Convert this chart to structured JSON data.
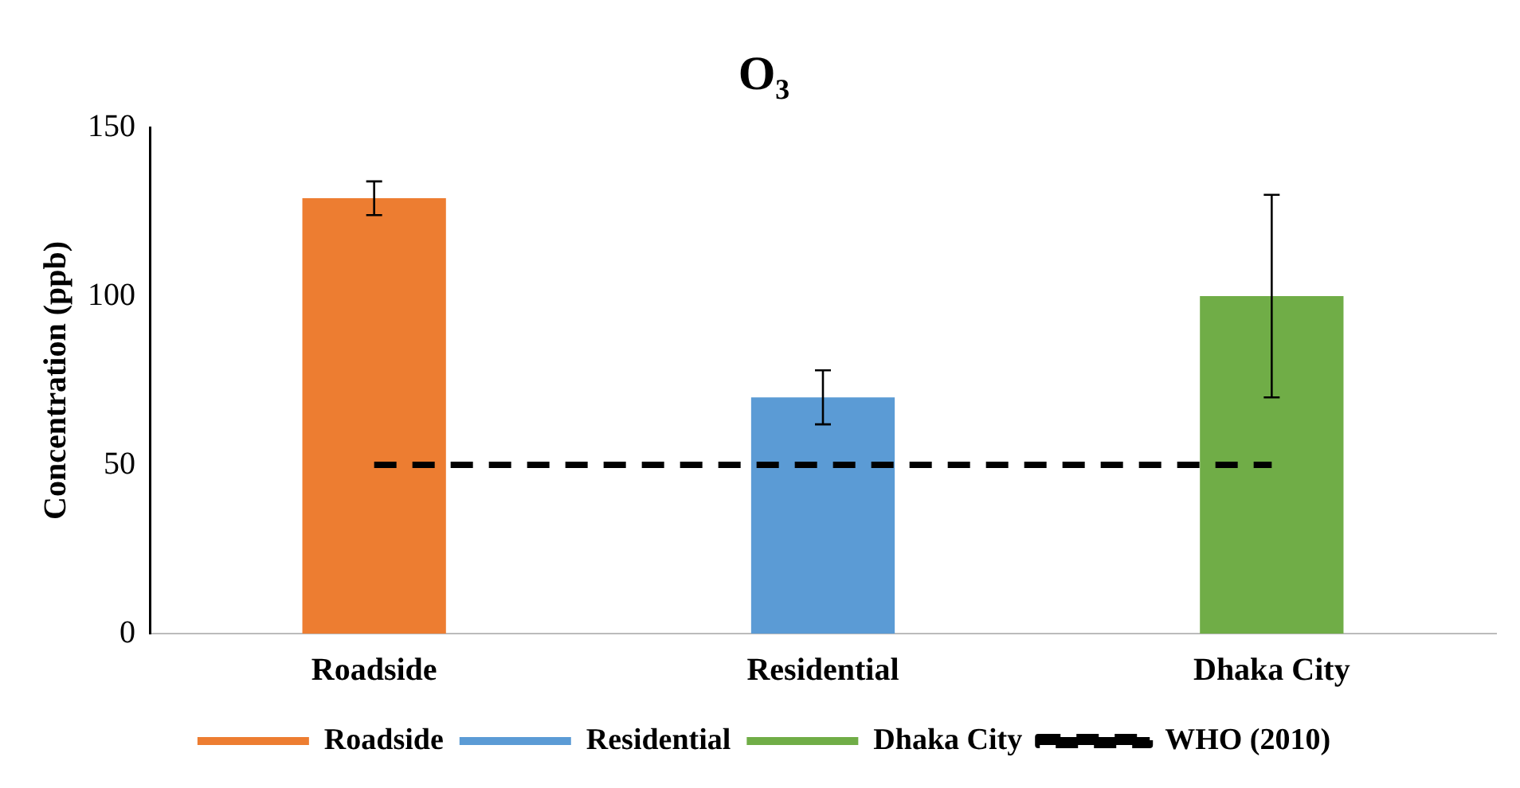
{
  "chart_data": {
    "type": "bar",
    "title": "O₃",
    "ylabel": "Concentration (ppb)",
    "categories": [
      "Roadside",
      "Residential",
      "Dhaka City"
    ],
    "series": [
      {
        "name": "Roadside",
        "color": "#ed7d31",
        "values": [
          129,
          null,
          null
        ],
        "errors": [
          5,
          null,
          null
        ]
      },
      {
        "name": "Residential",
        "color": "#5b9bd5",
        "values": [
          null,
          70,
          null
        ],
        "errors": [
          null,
          8,
          null
        ]
      },
      {
        "name": "Dhaka City",
        "color": "#70ad47",
        "values": [
          null,
          null,
          100
        ],
        "errors": [
          null,
          null,
          30
        ]
      },
      {
        "name": "WHO (2010)",
        "type": "line",
        "color": "#000000",
        "values": [
          50,
          50,
          50
        ],
        "line_style": "dashed",
        "marker": "none"
      }
    ],
    "ylim": [
      0,
      150
    ],
    "yticks": [
      0,
      50,
      100,
      150
    ],
    "grid": false,
    "legend": "bottom"
  }
}
